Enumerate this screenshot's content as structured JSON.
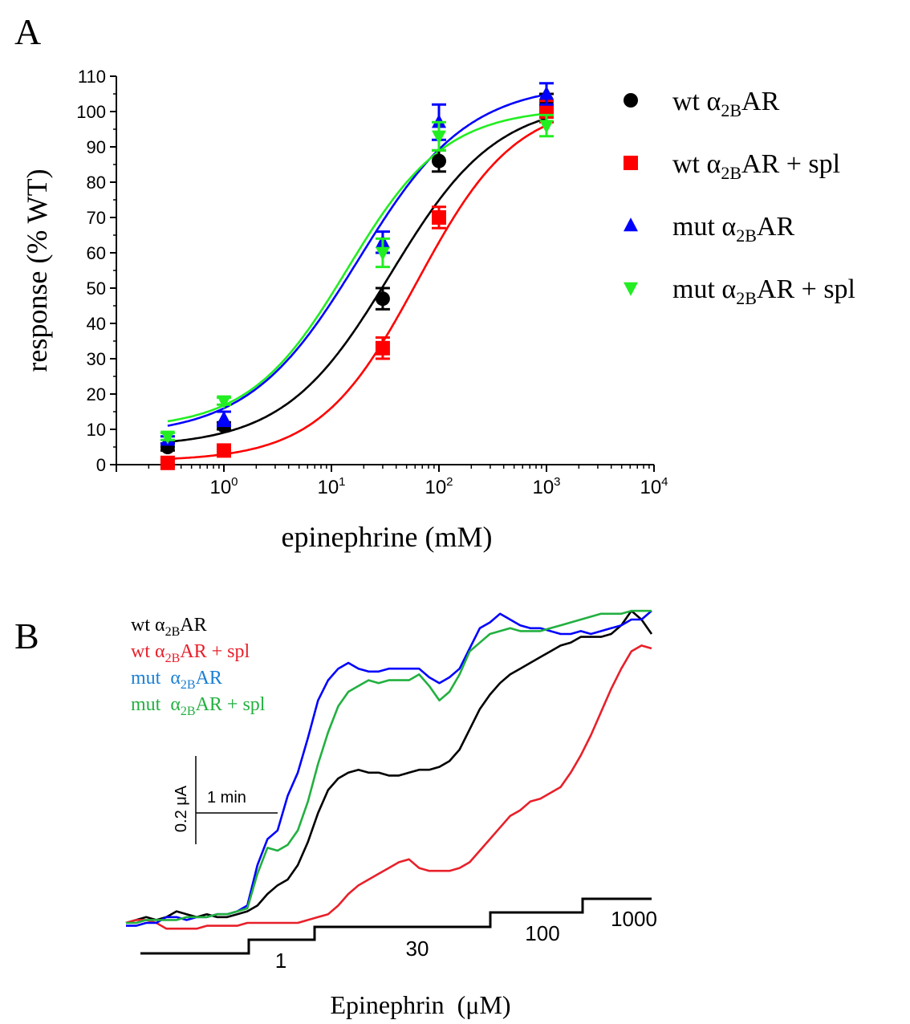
{
  "chart_data": [
    {
      "panel": "A",
      "type": "scatter",
      "ylabel": "response (% WT)",
      "xlabel": "epinephrine (mM)",
      "x_scale": "log",
      "xlim": [
        0.1,
        10000
      ],
      "ylim": [
        0,
        110
      ],
      "x_ticks": [
        1,
        10,
        100,
        1000,
        10000
      ],
      "x_tick_exponents": [
        "0",
        "1",
        "2",
        "3",
        "4"
      ],
      "x_tick_base": "10",
      "y_ticks": [
        0,
        10,
        20,
        30,
        40,
        50,
        60,
        70,
        80,
        90,
        100,
        110
      ],
      "grid": false,
      "legend_position": "right",
      "series": [
        {
          "legend": {
            "pre": "wt α",
            "sub": "2B",
            "post": "AR"
          },
          "color": "#000000",
          "marker": "circle",
          "points": [
            {
              "x": 0.3,
              "y": 5,
              "err": 1
            },
            {
              "x": 1,
              "y": 11,
              "err": 1
            },
            {
              "x": 30,
              "y": 47,
              "err": 3
            },
            {
              "x": 100,
              "y": 86,
              "err": 3
            },
            {
              "x": 1000,
              "y": 103,
              "err": 2
            }
          ],
          "fit": {
            "bottom": 5,
            "top": 103,
            "logec50": 1.55,
            "hill": 0.88
          }
        },
        {
          "legend": {
            "pre": "wt α",
            "sub": "2B",
            "post": "AR + spl"
          },
          "color": "#ff0000",
          "marker": "square",
          "points": [
            {
              "x": 0.3,
              "y": 0.5,
              "err": 1
            },
            {
              "x": 1,
              "y": 4,
              "err": 1
            },
            {
              "x": 30,
              "y": 33,
              "err": 3
            },
            {
              "x": 100,
              "y": 70,
              "err": 3
            },
            {
              "x": 1000,
              "y": 100,
              "err": 3
            }
          ],
          "fit": {
            "bottom": 1,
            "top": 103,
            "logec50": 1.8,
            "hill": 0.95
          }
        },
        {
          "legend": {
            "pre": "mut α",
            "sub": "2B",
            "post": "AR"
          },
          "color": "#0000ff",
          "marker": "triangle-up",
          "points": [
            {
              "x": 0.3,
              "y": 7,
              "err": 1
            },
            {
              "x": 1,
              "y": 13,
              "err": 2
            },
            {
              "x": 30,
              "y": 63,
              "err": 3
            },
            {
              "x": 100,
              "y": 97,
              "err": 5
            },
            {
              "x": 1000,
              "y": 105,
              "err": 3
            }
          ],
          "fit": {
            "bottom": 8,
            "top": 108,
            "logec50": 1.25,
            "hill": 0.85
          }
        },
        {
          "legend": {
            "pre": "mut α",
            "sub": "2B",
            "post": "AR + spl"
          },
          "color": "#22ee22",
          "marker": "triangle-down",
          "points": [
            {
              "x": 0.3,
              "y": 8,
              "err": 1
            },
            {
              "x": 1,
              "y": 18,
              "err": 1
            },
            {
              "x": 30,
              "y": 60,
              "err": 4
            },
            {
              "x": 100,
              "y": 93,
              "err": 4
            },
            {
              "x": 1000,
              "y": 96,
              "err": 3
            }
          ],
          "fit": {
            "bottom": 10,
            "top": 101,
            "logec50": 1.15,
            "hill": 0.95
          }
        }
      ]
    },
    {
      "panel": "B",
      "type": "line",
      "xlabel": "Epinephrin  (μM)",
      "step_labels": [
        "1",
        "30",
        "100",
        "1000"
      ],
      "scale_bar": {
        "current": "0.2 μA",
        "time": "1 min"
      },
      "legend": [
        {
          "pre": "wt α",
          "sub": "2B",
          "post": "AR",
          "color": "#000000"
        },
        {
          "pre": "wt α",
          "sub": "2B",
          "post": "AR + spl",
          "color": "#e8202a"
        },
        {
          "pre": "mut  α",
          "sub": "2B",
          "post": "AR",
          "color": "#1a7fd4"
        },
        {
          "pre": "mut  α",
          "sub": "2B",
          "post": "AR + spl",
          "color": "#22b040"
        }
      ],
      "series": [
        {
          "name": "wt α2BAR",
          "color": "#000000",
          "values": [
            0,
            0.01,
            0.02,
            0.01,
            0.02,
            0.04,
            0.03,
            0.02,
            0.03,
            0.02,
            0.02,
            0.03,
            0.04,
            0.06,
            0.1,
            0.13,
            0.15,
            0.2,
            0.28,
            0.38,
            0.46,
            0.5,
            0.52,
            0.53,
            0.52,
            0.52,
            0.51,
            0.51,
            0.52,
            0.53,
            0.53,
            0.54,
            0.56,
            0.6,
            0.67,
            0.74,
            0.79,
            0.83,
            0.86,
            0.88,
            0.9,
            0.92,
            0.94,
            0.96,
            0.97,
            0.99,
            0.99,
            0.99,
            1.0,
            1.03,
            1.08,
            1.05,
            1.0
          ]
        },
        {
          "name": "wt α2BAR + spl",
          "color": "#e8202a",
          "values": [
            0,
            0.01,
            0.01,
            0.0,
            -0.02,
            -0.02,
            -0.02,
            -0.02,
            -0.01,
            -0.01,
            -0.01,
            -0.01,
            0.0,
            0.0,
            0.0,
            0.0,
            0.0,
            0.0,
            0.01,
            0.02,
            0.03,
            0.06,
            0.1,
            0.13,
            0.15,
            0.17,
            0.19,
            0.21,
            0.22,
            0.19,
            0.18,
            0.18,
            0.18,
            0.19,
            0.21,
            0.25,
            0.29,
            0.33,
            0.37,
            0.39,
            0.42,
            0.43,
            0.45,
            0.47,
            0.52,
            0.58,
            0.65,
            0.73,
            0.81,
            0.88,
            0.94,
            0.96,
            0.95
          ]
        },
        {
          "name": "mut α2BAR",
          "color": "#0000ff",
          "values": [
            -0.01,
            -0.01,
            0.0,
            0.0,
            0.02,
            0.02,
            0.01,
            0.02,
            0.02,
            0.03,
            0.03,
            0.04,
            0.06,
            0.2,
            0.29,
            0.32,
            0.44,
            0.52,
            0.64,
            0.77,
            0.84,
            0.88,
            0.9,
            0.88,
            0.87,
            0.87,
            0.88,
            0.88,
            0.88,
            0.88,
            0.85,
            0.83,
            0.85,
            0.88,
            0.95,
            1.02,
            1.04,
            1.07,
            1.05,
            1.03,
            1.02,
            1.02,
            1.01,
            1.0,
            1.0,
            1.01,
            1.0,
            1.01,
            1.02,
            1.03,
            1.05,
            1.05,
            1.08
          ]
        },
        {
          "name": "mut α2BAR + spl",
          "color": "#22b040",
          "values": [
            0,
            0.0,
            0.01,
            0.01,
            0.01,
            0.01,
            0.02,
            0.02,
            0.02,
            0.03,
            0.03,
            0.04,
            0.05,
            0.17,
            0.26,
            0.25,
            0.27,
            0.32,
            0.42,
            0.55,
            0.66,
            0.75,
            0.8,
            0.82,
            0.84,
            0.83,
            0.84,
            0.84,
            0.84,
            0.86,
            0.82,
            0.77,
            0.8,
            0.86,
            0.94,
            0.97,
            1.0,
            1.01,
            1.02,
            1.01,
            1.01,
            1.01,
            1.02,
            1.03,
            1.04,
            1.05,
            1.06,
            1.07,
            1.07,
            1.07,
            1.08,
            1.08,
            1.08
          ]
        }
      ]
    }
  ],
  "panel_labels": {
    "a": "A",
    "b": "B"
  }
}
